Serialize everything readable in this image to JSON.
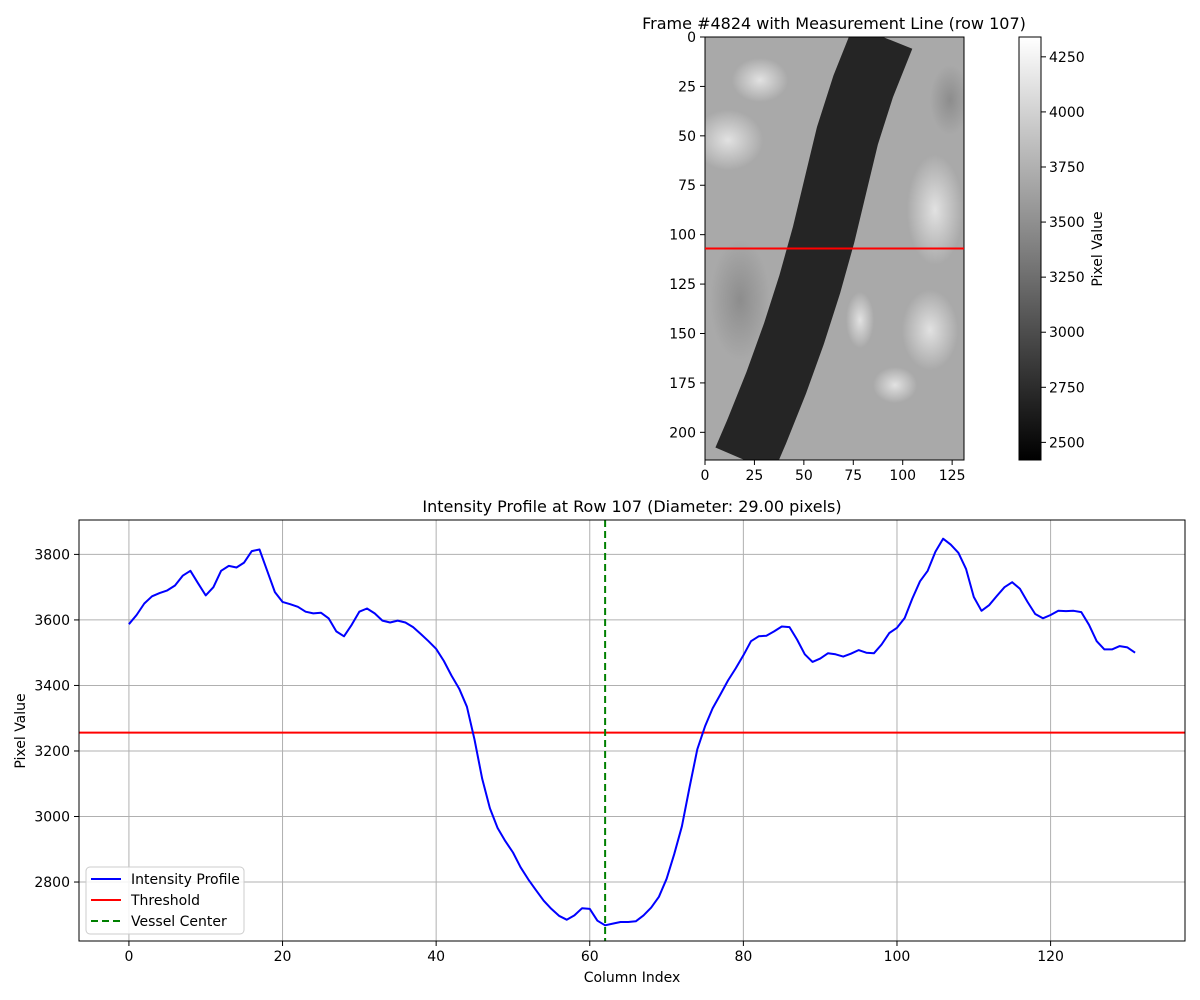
{
  "chart_data": [
    {
      "type": "heatmap",
      "title": "Frame #4824 with Measurement Line (row 107)",
      "xlim": [
        0,
        131
      ],
      "ylim": [
        214,
        0
      ],
      "xticks": [
        0,
        25,
        50,
        75,
        100,
        125
      ],
      "yticks": [
        0,
        25,
        50,
        75,
        100,
        125,
        150,
        175,
        200
      ],
      "measurement_row": 107,
      "measurement_line_color": "#ff0000",
      "colormap": "gray",
      "vessel_centerline": [
        [
          0,
          90
        ],
        [
          25,
          80
        ],
        [
          50,
          72
        ],
        [
          75,
          66
        ],
        [
          100,
          60
        ],
        [
          125,
          53
        ],
        [
          150,
          45
        ],
        [
          175,
          36
        ],
        [
          200,
          26
        ],
        [
          214,
          20
        ]
      ],
      "vessel_width": 32,
      "colorbar": {
        "label": "Pixel Value",
        "range": [
          2420,
          4340
        ],
        "ticks": [
          2500,
          2750,
          3000,
          3250,
          3500,
          3750,
          4000,
          4250
        ]
      }
    },
    {
      "type": "line",
      "title": "Intensity Profile at Row 107 (Diameter: 29.00 pixels)",
      "xlabel": "Column Index",
      "ylabel": "Pixel Value",
      "xlim": [
        -6.5,
        137.5
      ],
      "ylim": [
        2620,
        3905
      ],
      "xticks": [
        0,
        20,
        40,
        60,
        80,
        100,
        120
      ],
      "yticks": [
        2800,
        3000,
        3200,
        3400,
        3600,
        3800
      ],
      "grid": true,
      "legend_position": "lower-left",
      "series": [
        {
          "name": "Intensity Profile",
          "color": "#0000ff",
          "style": "solid",
          "x_start": 0,
          "values": [
            3587,
            3615,
            3650,
            3672,
            3682,
            3690,
            3705,
            3735,
            3750,
            3712,
            3675,
            3700,
            3750,
            3765,
            3760,
            3775,
            3810,
            3815,
            3750,
            3685,
            3655,
            3648,
            3640,
            3625,
            3620,
            3622,
            3605,
            3565,
            3550,
            3585,
            3625,
            3635,
            3620,
            3598,
            3592,
            3598,
            3592,
            3578,
            3557,
            3535,
            3512,
            3475,
            3430,
            3390,
            3335,
            3235,
            3115,
            3025,
            2965,
            2925,
            2890,
            2845,
            2808,
            2775,
            2743,
            2718,
            2697,
            2685,
            2698,
            2720,
            2718,
            2682,
            2668,
            2673,
            2678,
            2678,
            2680,
            2698,
            2722,
            2755,
            2810,
            2885,
            2970,
            3090,
            3205,
            3275,
            3330,
            3372,
            3415,
            3452,
            3492,
            3535,
            3550,
            3552,
            3565,
            3580,
            3578,
            3540,
            3495,
            3472,
            3482,
            3498,
            3495,
            3488,
            3497,
            3508,
            3500,
            3498,
            3525,
            3560,
            3576,
            3606,
            3665,
            3718,
            3750,
            3808,
            3848,
            3830,
            3805,
            3755,
            3670,
            3628,
            3645,
            3673,
            3700,
            3715,
            3695,
            3655,
            3618,
            3605,
            3615,
            3628,
            3627,
            3628,
            3624,
            3585,
            3535,
            3510,
            3510,
            3520,
            3516,
            3500
          ]
        },
        {
          "name": "Threshold",
          "color": "#ff0000",
          "style": "solid",
          "y": 3256
        },
        {
          "name": "Vessel Center",
          "color": "#008000",
          "style": "dashed",
          "x": 62
        }
      ]
    }
  ]
}
